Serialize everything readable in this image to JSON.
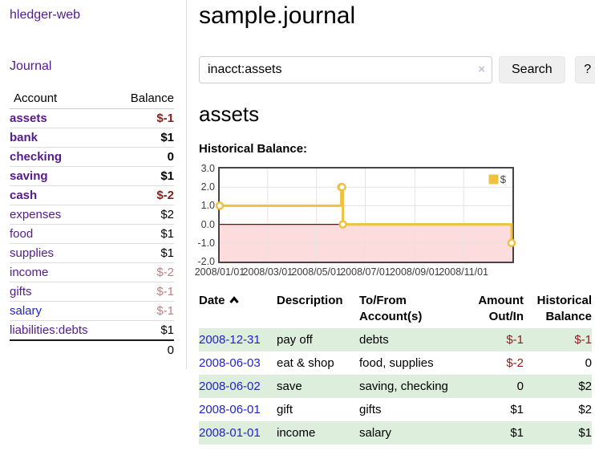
{
  "sidebar": {
    "brand": "hledger-web",
    "journal_link": "Journal",
    "accounts_table": {
      "account_header": "Account",
      "balance_header": "Balance",
      "rows": [
        {
          "name": "assets",
          "level": 1,
          "in_account": true,
          "balance": "$-1",
          "balance_tone": "negative-strong",
          "link_tone": "purple"
        },
        {
          "name": "bank",
          "level": 2,
          "in_account": true,
          "balance": "$1",
          "balance_tone": "normal",
          "link_tone": "purple"
        },
        {
          "name": "checking",
          "level": 3,
          "in_account": true,
          "balance": "0",
          "balance_tone": "normal",
          "link_tone": "purple"
        },
        {
          "name": "saving",
          "level": 3,
          "in_account": true,
          "balance": "$1",
          "balance_tone": "normal",
          "link_tone": "purple"
        },
        {
          "name": "cash",
          "level": 2,
          "in_account": true,
          "balance": "$-2",
          "balance_tone": "negative-strong",
          "link_tone": "purple"
        },
        {
          "name": "expenses",
          "level": 1,
          "in_account": false,
          "balance": "$2",
          "balance_tone": "normal",
          "link_tone": "purple"
        },
        {
          "name": "food",
          "level": 2,
          "in_account": false,
          "balance": "$1",
          "balance_tone": "normal",
          "link_tone": "purple"
        },
        {
          "name": "supplies",
          "level": 2,
          "in_account": false,
          "balance": "$1",
          "balance_tone": "normal",
          "link_tone": "purple"
        },
        {
          "name": "income",
          "level": 1,
          "in_account": false,
          "balance": "$-2",
          "balance_tone": "negative-light",
          "link_tone": "purple"
        },
        {
          "name": "gifts",
          "level": 2,
          "in_account": false,
          "balance": "$-1",
          "balance_tone": "negative-light",
          "link_tone": "purple"
        },
        {
          "name": "salary",
          "level": 2,
          "in_account": false,
          "balance": "$-1",
          "balance_tone": "negative-light",
          "link_tone": "blue"
        },
        {
          "name": "liabilities:debts",
          "level": 1,
          "in_account": false,
          "balance": "$1",
          "balance_tone": "normal",
          "link_tone": "purple"
        }
      ],
      "total": "0"
    }
  },
  "header": {
    "title": "sample.journal"
  },
  "search": {
    "value": "inacct:assets",
    "clear_icon": "×",
    "button_label": "Search",
    "help_label": "?"
  },
  "register": {
    "heading": "assets",
    "chart_label": "Historical Balance:",
    "table": {
      "headers": {
        "date": "Date",
        "description": "Description",
        "accounts": "To/From Account(s)",
        "amount": "Amount Out/In",
        "balance": "Historical Balance"
      },
      "rows": [
        {
          "date": "2008-12-31",
          "description": "pay off",
          "accounts": "debts",
          "amount": "$-1",
          "amount_negative": true,
          "balance": "$-1",
          "balance_negative": true
        },
        {
          "date": "2008-06-03",
          "description": "eat & shop",
          "accounts": "food, supplies",
          "amount": "$-2",
          "amount_negative": true,
          "balance": "0",
          "balance_negative": false
        },
        {
          "date": "2008-06-02",
          "description": "save",
          "accounts": "saving, checking",
          "amount": "0",
          "amount_negative": false,
          "balance": "$2",
          "balance_negative": false
        },
        {
          "date": "2008-06-01",
          "description": "gift",
          "accounts": "gifts",
          "amount": "$1",
          "amount_negative": false,
          "balance": "$2",
          "balance_negative": false
        },
        {
          "date": "2008-01-01",
          "description": "income",
          "accounts": "salary",
          "amount": "$1",
          "amount_negative": false,
          "balance": "$1",
          "balance_negative": false
        }
      ]
    }
  },
  "chart_data": {
    "type": "line",
    "step": true,
    "title": "Historical Balance",
    "legend": "$",
    "legend_position": "top-right",
    "series": [
      {
        "name": "$",
        "color": "#EDC240",
        "points": [
          [
            "2008-01-01",
            1
          ],
          [
            "2008-06-01",
            2
          ],
          [
            "2008-06-02",
            2
          ],
          [
            "2008-06-03",
            0
          ],
          [
            "2008-12-31",
            -1
          ]
        ]
      }
    ],
    "xlim": [
      "2008-01-01",
      "2009-01-01"
    ],
    "ylim": [
      -2,
      3
    ],
    "yticks": [
      "3.0",
      "2.0",
      "1.0",
      "0.0",
      "-1.0",
      "-2.0"
    ],
    "xticks": [
      "2008/01/01",
      "2008/03/01",
      "2008/05/01",
      "2008/07/01",
      "2008/09/01",
      "2008/11/01"
    ],
    "grid": true,
    "negative_region_color": "#fcdcdc",
    "zero_line_color": "#8b0000",
    "gridline_color": "#e4e4e4"
  }
}
